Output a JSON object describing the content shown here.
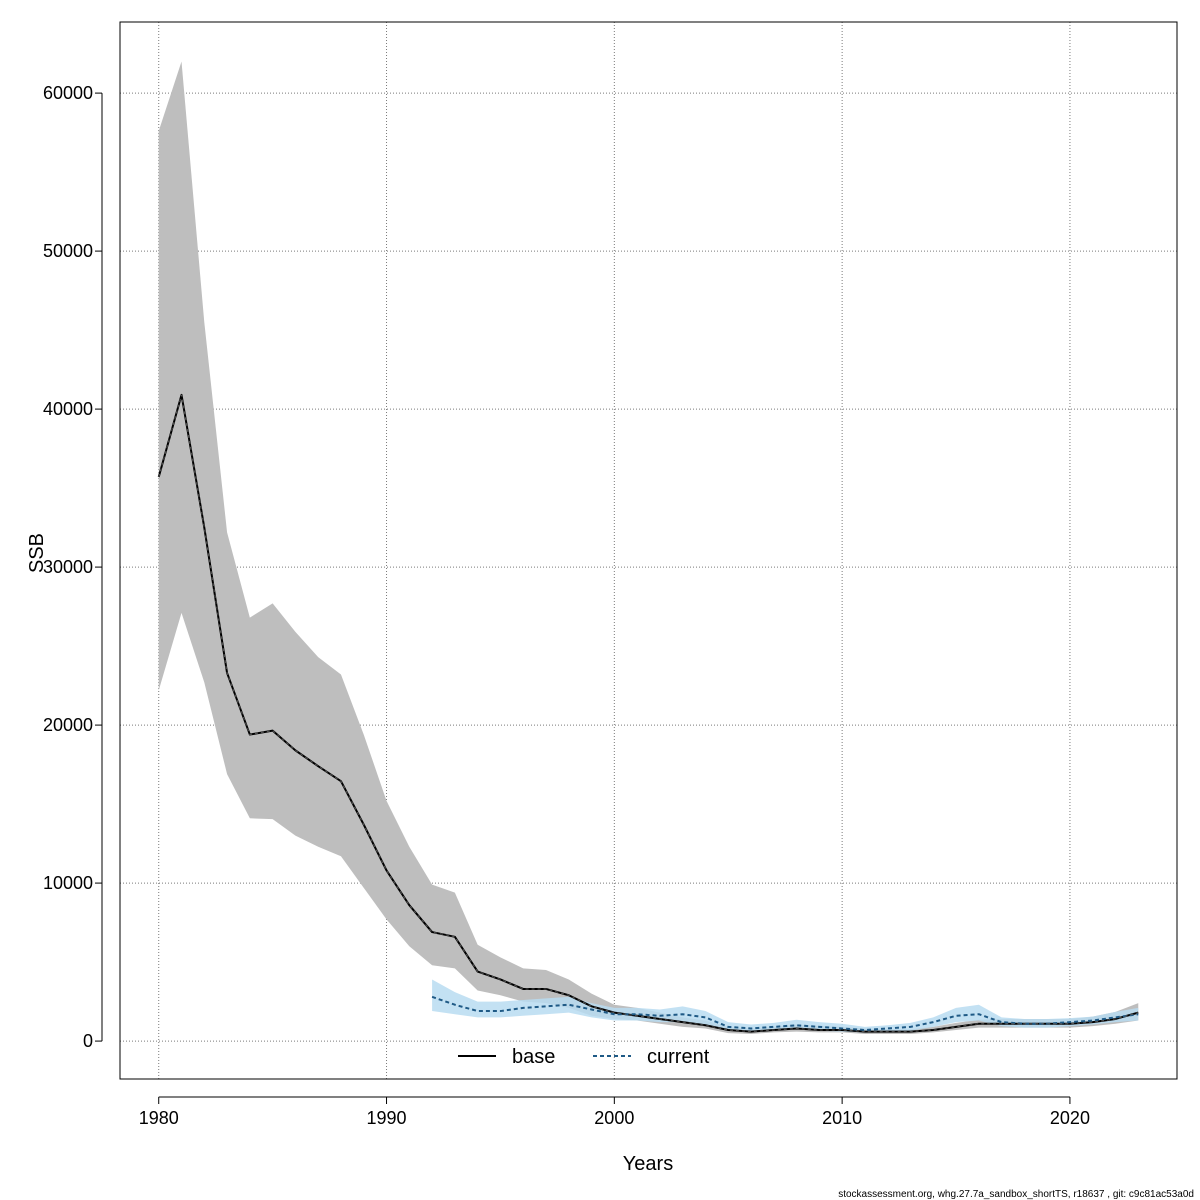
{
  "footer": "stockassessment.org, whg.27.7a_sandbox_shortTS, r18637 , git: c9c81ac53a0d",
  "chart_data": {
    "type": "line",
    "xlabel": "Years",
    "ylabel": "SSB",
    "xlim": [
      1978.3,
      2024.7
    ],
    "ylim": [
      -2400,
      64500
    ],
    "x_ticks": [
      1980,
      1990,
      2000,
      2010,
      2020
    ],
    "y_ticks": [
      0,
      10000,
      20000,
      30000,
      40000,
      50000,
      60000
    ],
    "x_tick_labels": [
      "1980",
      "1990",
      "2000",
      "2010",
      "2020"
    ],
    "y_tick_labels": [
      "0",
      "10000",
      "20000",
      "30000",
      "40000",
      "50000",
      "60000"
    ],
    "grid": true,
    "legend_position": "bottom",
    "colors": {
      "base_line": "#000000",
      "base_band": "#bebebe",
      "current_line": "#1f5a86",
      "current_band": "#b8dcf1",
      "grid": "#7a7a7a"
    },
    "series": [
      {
        "name": "base",
        "line_style": "solid",
        "x": [
          1980,
          1981,
          1982,
          1983,
          1984,
          1985,
          1986,
          1987,
          1988,
          1989,
          1990,
          1991,
          1992,
          1993,
          1994,
          1995,
          1996,
          1997,
          1998,
          1999,
          2000,
          2001,
          2002,
          2003,
          2004,
          2005,
          2006,
          2007,
          2008,
          2009,
          2010,
          2011,
          2012,
          2013,
          2014,
          2015,
          2016,
          2017,
          2018,
          2019,
          2020,
          2021,
          2022,
          2023
        ],
        "values": [
          35700,
          40900,
          32500,
          23300,
          19400,
          19650,
          18400,
          17400,
          16450,
          13700,
          10800,
          8600,
          6900,
          6600,
          4400,
          3900,
          3300,
          3300,
          2900,
          2200,
          1800,
          1600,
          1400,
          1200,
          1000,
          700,
          600,
          700,
          800,
          700,
          700,
          600,
          600,
          600,
          700,
          900,
          1100,
          1100,
          1100,
          1100,
          1100,
          1200,
          1400,
          1800
        ],
        "lower": [
          22200,
          27100,
          22700,
          16900,
          14100,
          14050,
          13000,
          12300,
          11700,
          9700,
          7700,
          6000,
          4800,
          4600,
          3200,
          2900,
          2500,
          2400,
          2100,
          1600,
          1400,
          1300,
          1100,
          900,
          800,
          500,
          450,
          550,
          600,
          550,
          550,
          450,
          450,
          450,
          550,
          700,
          850,
          850,
          850,
          850,
          850,
          950,
          1100,
          1300
        ],
        "upper": [
          57600,
          62000,
          45500,
          32200,
          26800,
          27700,
          25900,
          24300,
          23200,
          19400,
          15200,
          12300,
          9900,
          9400,
          6100,
          5300,
          4600,
          4500,
          3900,
          3000,
          2300,
          2100,
          1800,
          1500,
          1300,
          900,
          800,
          900,
          1050,
          950,
          900,
          800,
          750,
          750,
          900,
          1150,
          1350,
          1400,
          1400,
          1400,
          1400,
          1550,
          1850,
          2400
        ]
      },
      {
        "name": "current",
        "line_style": "dashed",
        "x": [
          1992,
          1993,
          1994,
          1995,
          1996,
          1997,
          1998,
          1999,
          2000,
          2001,
          2002,
          2003,
          2004,
          2005,
          2006,
          2007,
          2008,
          2009,
          2010,
          2011,
          2012,
          2013,
          2014,
          2015,
          2016,
          2017,
          2018,
          2019,
          2020,
          2021,
          2022,
          2023
        ],
        "values": [
          2800,
          2300,
          1900,
          1900,
          2100,
          2200,
          2300,
          2000,
          1700,
          1700,
          1600,
          1700,
          1500,
          900,
          800,
          900,
          1000,
          900,
          800,
          700,
          800,
          900,
          1200,
          1600,
          1700,
          1200,
          1100,
          1100,
          1200,
          1300,
          1500,
          1700
        ],
        "lower": [
          1900,
          1700,
          1500,
          1500,
          1600,
          1700,
          1800,
          1500,
          1300,
          1300,
          1200,
          1200,
          1000,
          650,
          600,
          650,
          750,
          650,
          600,
          550,
          600,
          650,
          900,
          1200,
          1300,
          950,
          850,
          850,
          950,
          1050,
          1200,
          1300
        ],
        "upper": [
          3900,
          3100,
          2500,
          2500,
          2600,
          2700,
          2800,
          2400,
          2100,
          2100,
          2000,
          2200,
          1900,
          1200,
          1050,
          1150,
          1350,
          1200,
          1100,
          900,
          1000,
          1150,
          1500,
          2100,
          2300,
          1500,
          1400,
          1400,
          1450,
          1550,
          1850,
          2100
        ]
      }
    ]
  }
}
